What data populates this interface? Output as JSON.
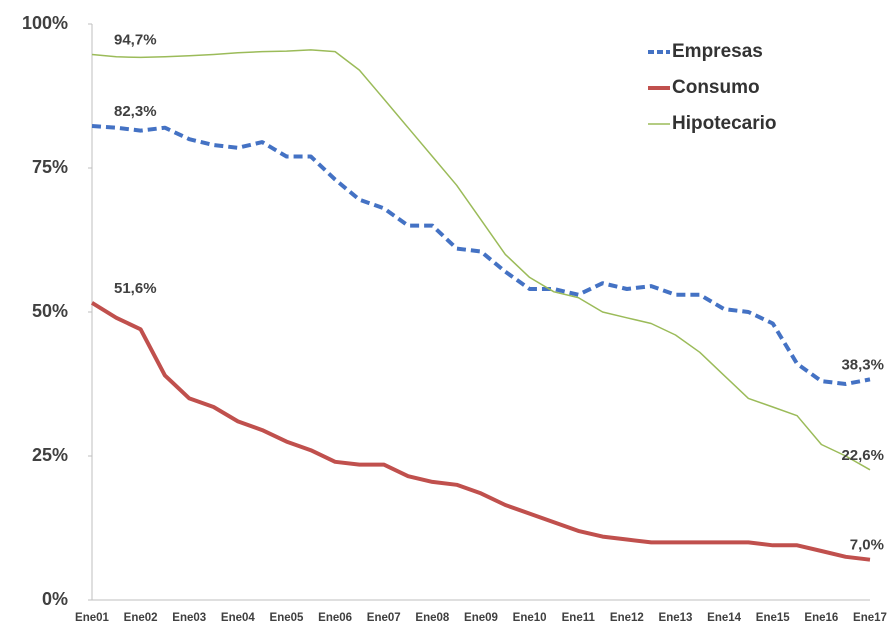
{
  "chart_data": {
    "type": "line",
    "categories": [
      "Ene01",
      null,
      "Ene02",
      null,
      "Ene03",
      null,
      "Ene04",
      null,
      "Ene05",
      null,
      "Ene06",
      null,
      "Ene07",
      null,
      "Ene08",
      null,
      "Ene09",
      null,
      "Ene10",
      null,
      "Ene11",
      null,
      "Ene12",
      null,
      "Ene13",
      null,
      "Ene14",
      null,
      "Ene15",
      null,
      "Ene16",
      null,
      "Ene17"
    ],
    "series": [
      {
        "name": "Empresas",
        "color": "#4472c4",
        "dash": true,
        "values": [
          82.3,
          82,
          81.5,
          82,
          80,
          79,
          78.5,
          79.5,
          77,
          77,
          73,
          69.5,
          68,
          65,
          65,
          61,
          60.5,
          57,
          54,
          54,
          53,
          55,
          54,
          54.5,
          53,
          53,
          50.5,
          50,
          48,
          41,
          38,
          37.5,
          38.3
        ],
        "value_labels": [
          "82,3%",
          null,
          null,
          null,
          null,
          null,
          null,
          null,
          null,
          null,
          null,
          null,
          null,
          null,
          null,
          null,
          null,
          null,
          null,
          null,
          null,
          null,
          null,
          null,
          null,
          null,
          null,
          null,
          null,
          null,
          null,
          null,
          "38,3%"
        ]
      },
      {
        "name": "Consumo",
        "color": "#c0504d",
        "dash": false,
        "values": [
          51.6,
          49,
          47,
          39,
          35,
          33.5,
          31,
          29.5,
          27.5,
          26,
          24,
          23.5,
          23.5,
          21.5,
          20.5,
          20,
          18.5,
          16.5,
          15,
          13.5,
          12,
          11,
          10.5,
          10,
          10,
          10,
          10,
          10,
          9.5,
          9.5,
          8.5,
          7.5,
          7.0
        ],
        "value_labels": [
          "51,6%",
          null,
          null,
          null,
          null,
          null,
          null,
          null,
          null,
          null,
          null,
          null,
          null,
          null,
          null,
          null,
          null,
          null,
          null,
          null,
          null,
          null,
          null,
          null,
          null,
          null,
          null,
          null,
          null,
          null,
          null,
          null,
          "7,0%"
        ]
      },
      {
        "name": "Hipotecario",
        "color": "#9bbb59",
        "dash": false,
        "values": [
          94.7,
          94.3,
          94.2,
          94.3,
          94.5,
          94.7,
          95,
          95.2,
          95.3,
          95.5,
          95.2,
          92,
          87,
          82,
          77,
          72,
          66,
          60,
          56,
          53.5,
          52.5,
          50,
          49,
          48,
          46,
          43,
          39,
          35,
          33.5,
          32,
          27,
          25,
          22.6
        ],
        "value_labels": [
          "94,7%",
          null,
          null,
          null,
          null,
          null,
          null,
          null,
          null,
          null,
          null,
          null,
          null,
          null,
          null,
          null,
          null,
          null,
          null,
          null,
          null,
          null,
          null,
          null,
          null,
          null,
          null,
          null,
          null,
          null,
          null,
          null,
          "22,6%"
        ]
      }
    ],
    "ylim": [
      0,
      100
    ],
    "yticks": [
      {
        "value": 0,
        "label": "0%"
      },
      {
        "value": 25,
        "label": "25%"
      },
      {
        "value": 50,
        "label": "50%"
      },
      {
        "value": 75,
        "label": "75%"
      },
      {
        "value": 100,
        "label": "100%"
      }
    ],
    "legend": "top-right",
    "grid": false
  }
}
